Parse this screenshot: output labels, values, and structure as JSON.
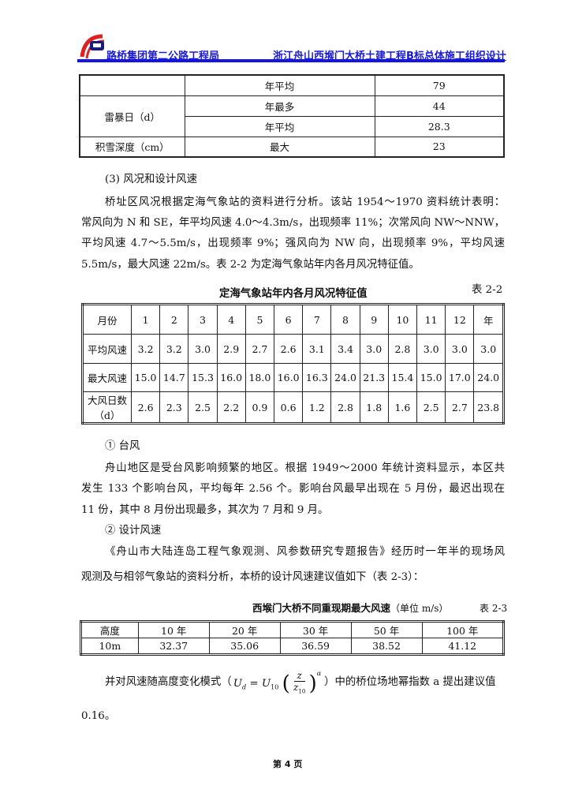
{
  "header": {
    "company": "路桥集团第二公路工程局",
    "project": "浙江舟山西堠门大桥土建工程B标总体施工组织设计",
    "accent": "#1515e0"
  },
  "table1": {
    "rows": [
      [
        "",
        "年平均",
        "79"
      ],
      [
        "雷暴日（d）",
        "年最多",
        "44"
      ],
      [
        "",
        "年平均",
        "28.3"
      ],
      [
        "积雪深度（cm）",
        "最大",
        "23"
      ]
    ]
  },
  "section3": {
    "heading": "(3) 风况和设计风速",
    "para": [
      "桥址区风况根据定海气象站的资料进行分析。该站 1954～1970 资料统计表明：",
      "常风向为 N 和 SE，年平均风速 4.0～4.3m/s，出现频率 11%；次常风向 NW～NNW，",
      "平均风速 4.7～5.5m/s，出现频率 9%；强风向为 NW 向，出现频率 9%，平均风速",
      "5.5m/s，最大风速 22m/s。表 2-2 为定海气象站年内各月风况特征值。"
    ]
  },
  "table22": {
    "title": "定海气象站年内各月风况特征值",
    "label": "表 2-2",
    "header": [
      "月份",
      "1",
      "2",
      "3",
      "4",
      "5",
      "6",
      "7",
      "8",
      "9",
      "10",
      "11",
      "12",
      "年"
    ],
    "rows": [
      [
        "平均风速",
        "3.2",
        "3.2",
        "3.0",
        "2.9",
        "2.7",
        "2.6",
        "3.1",
        "3.4",
        "3.0",
        "2.8",
        "3.0",
        "3.0",
        "3.0"
      ],
      [
        "最大风速",
        "15.0",
        "14.7",
        "15.3",
        "16.0",
        "18.0",
        "16.0",
        "16.3",
        "24.0",
        "21.3",
        "15.4",
        "15.0",
        "17.0",
        "24.0"
      ],
      [
        "大风日数（d）",
        "2.6",
        "2.3",
        "2.5",
        "2.2",
        "0.9",
        "0.6",
        "1.2",
        "2.8",
        "1.8",
        "1.6",
        "2.5",
        "2.7",
        "23.8"
      ]
    ]
  },
  "typhoon": {
    "heading": "① 台风",
    "para": [
      "舟山地区是受台风影响频繁的地区。根据 1949～2000 年统计资料显示，本区共",
      "发生 133 个影响台风，平均每年 2.56 个。影响台风最早出现在 5 月份，最迟出现在",
      "11 份，其中 8 月份出现最多，其次为 7 月和 9 月。"
    ]
  },
  "design": {
    "heading": "② 设计风速",
    "para": [
      "《舟山市大陆连岛工程气象观测、风参数研究专题报告》经历时一年半的现场风",
      "观测及与相邻气象站的资料分析，本桥的设计风速建议值如下（表 2-3）："
    ]
  },
  "table23": {
    "title": "西堠门大桥不同重现期最大风速",
    "unit": "（单位 m/s）",
    "label": "表 2-3",
    "header": [
      "高度",
      "10 年",
      "20 年",
      "30 年",
      "50 年",
      "100 年"
    ],
    "row": [
      "10m",
      "32.37",
      "35.06",
      "36.59",
      "38.52",
      "41.12"
    ]
  },
  "formula": {
    "before": "并对风速随高度变化模式（",
    "Ud": "U",
    "d": "d",
    "eq": "=",
    "U10": "U",
    "sub10": "10",
    "z": "z",
    "z10": "z",
    "zsub": "10",
    "alpha": "α",
    "after": "）中的桥位场地幂指数 a 提出建议值",
    "cont": "0.16。"
  },
  "footer": {
    "page": "第 4 页"
  }
}
